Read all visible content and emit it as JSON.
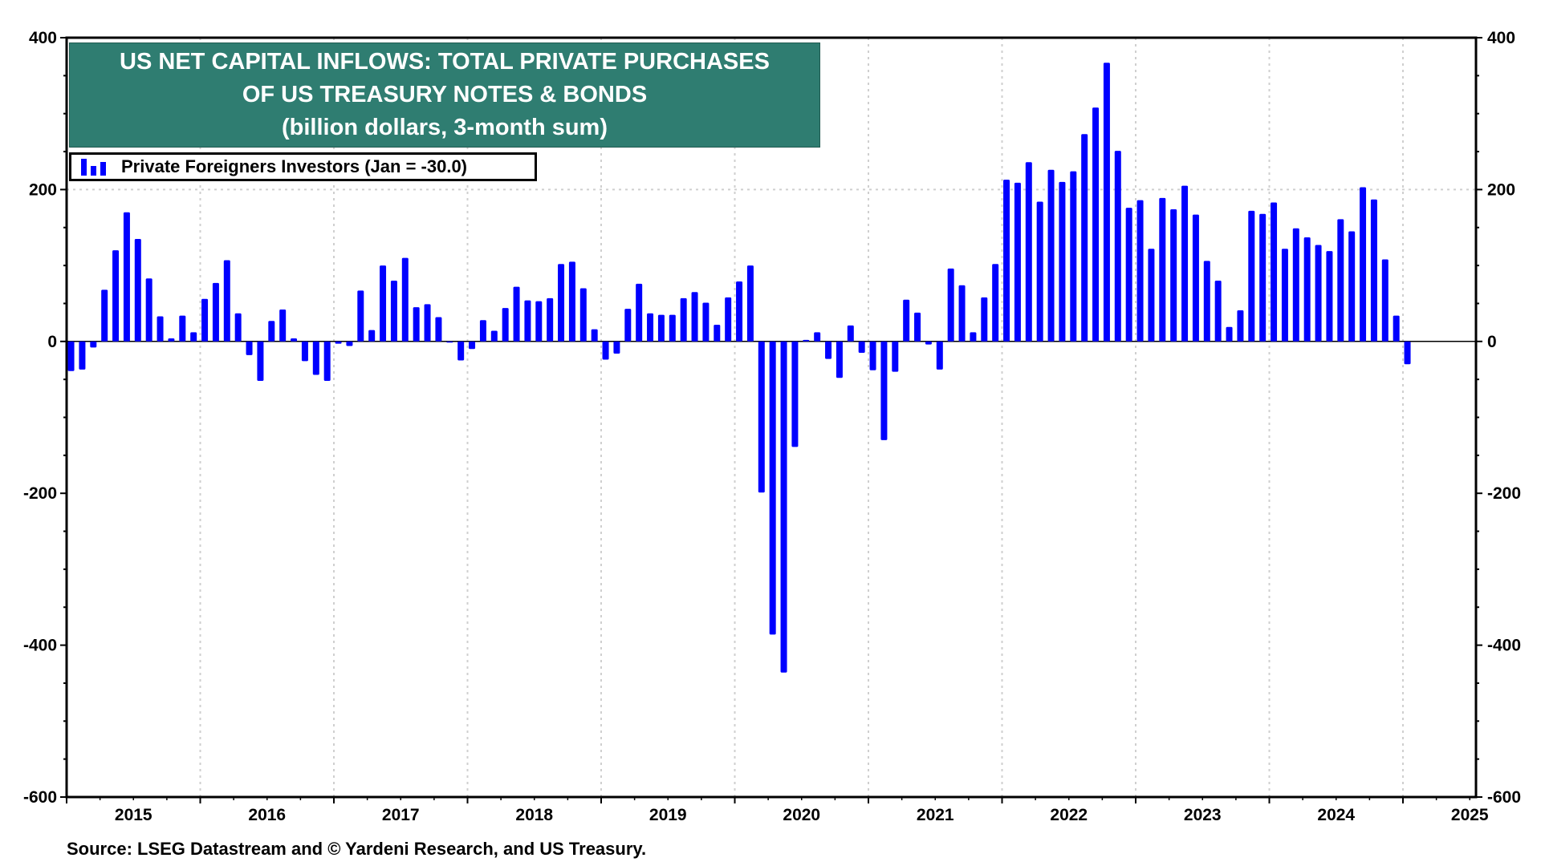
{
  "chart_data": {
    "type": "bar",
    "title": [
      "US NET CAPITAL INFLOWS: TOTAL PRIVATE PURCHASES",
      "OF US TREASURY NOTES & BONDS",
      "(billion dollars, 3-month sum)"
    ],
    "legend": {
      "label": "Private Foreigners Investors (Jan = -30.0)",
      "placement": "top-left"
    },
    "series": [
      {
        "name": "Private Foreigners Investors",
        "color": "#0000ff",
        "start": "2015-01",
        "frequency": "monthly",
        "values": [
          -39,
          -37,
          -8,
          68,
          120,
          170,
          135,
          83,
          33,
          4,
          34,
          12,
          56,
          77,
          107,
          37,
          -18,
          -52,
          27,
          42,
          4,
          -26,
          -44,
          -52,
          -3,
          -6,
          67,
          15,
          100,
          80,
          110,
          45,
          49,
          32,
          -1,
          -25,
          -10,
          28,
          14,
          44,
          72,
          54,
          53,
          57,
          102,
          105,
          70,
          16,
          -24,
          -16,
          43,
          76,
          37,
          35,
          35,
          57,
          65,
          51,
          22,
          58,
          79,
          100,
          -199,
          -386,
          -436,
          -139,
          2,
          12,
          -23,
          -48,
          21,
          -15,
          -38,
          -130,
          -40,
          55,
          38,
          -4,
          -37,
          96,
          74,
          12,
          58,
          102,
          213,
          209,
          236,
          184,
          226,
          210,
          224,
          273,
          308,
          367,
          251,
          176,
          186,
          122,
          189,
          174,
          205,
          167,
          106,
          80,
          19,
          41,
          172,
          168,
          183,
          122,
          149,
          137,
          127,
          119,
          161,
          145,
          203,
          187,
          108,
          34,
          -30
        ]
      }
    ],
    "x_tick_labels": [
      "2015",
      "2016",
      "2017",
      "2018",
      "2019",
      "2020",
      "2021",
      "2022",
      "2023",
      "2024",
      "2025"
    ],
    "y_tick_labels": [
      "400",
      "200",
      "0",
      "-200",
      "-400",
      "-600"
    ],
    "ylim": [
      -600,
      400
    ],
    "y_axis": "both sides",
    "grid": "dotted, at year boundaries and y=200",
    "source": "Source: LSEG Datastream and © Yardeni Research, and US Treasury.",
    "title_bg_color": "#2f7d71"
  }
}
